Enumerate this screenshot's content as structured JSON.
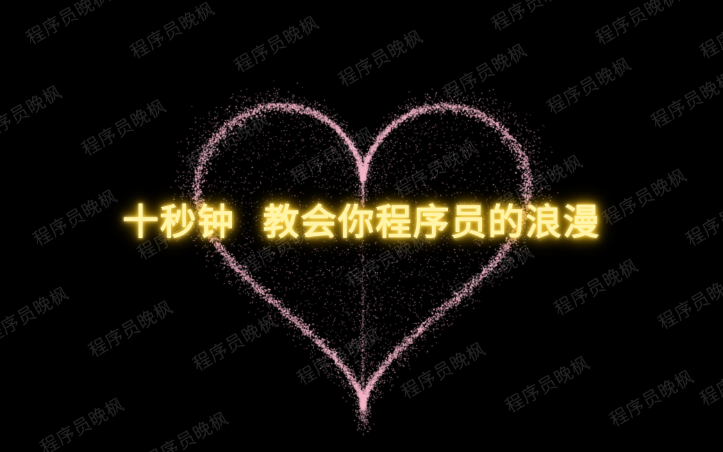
{
  "title": "十秒钟  教会你程序员的浪漫",
  "watermark_text": "程序员晚枫",
  "colors": {
    "background": "#000000",
    "heart_particles": "#f4b6c8",
    "title_text": "#fff3a8",
    "title_glow": "#f5b800"
  },
  "icons": {
    "heart": "particle-heart-icon"
  }
}
